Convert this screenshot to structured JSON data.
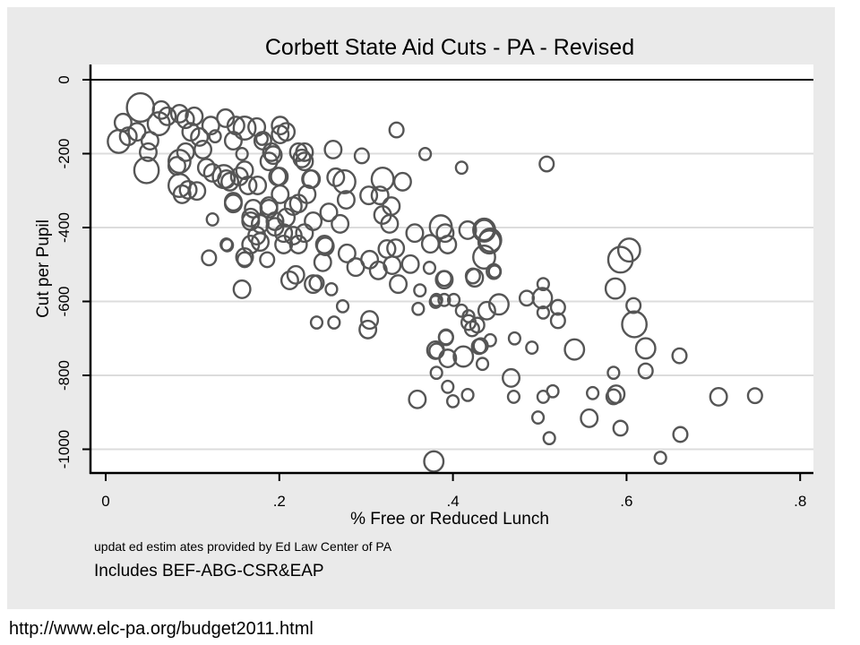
{
  "chart_data": {
    "type": "scatter",
    "title": "Corbett State Aid Cuts - PA - Revised",
    "xlabel": "% Free or Reduced Lunch",
    "ylabel": "Cut per Pupil",
    "xlim": [
      -0.015,
      0.818
    ],
    "ylim": [
      -1060,
      40
    ],
    "xticks": [
      0,
      0.2,
      0.4,
      0.6,
      0.8
    ],
    "xtick_labels": [
      "0",
      ".2",
      ".4",
      ".6",
      ".8"
    ],
    "yticks": [
      0,
      -200,
      -400,
      -600,
      -800,
      -1000
    ],
    "ytick_labels": [
      "0",
      "-200",
      "-400",
      "-600",
      "-800",
      "-1000"
    ],
    "grid": "horizontal",
    "reference_line_y": 0,
    "marker": "hollow circle, size weighted",
    "marker_color": "#555555",
    "notes": [
      "updat ed estim ates provided by Ed Law Center of PA",
      "Includes BEF-ABG-CSR&EAP"
    ],
    "points_columns": [
      "x",
      "y",
      "weight"
    ],
    "points": [
      [
        0.04,
        -75,
        4
      ],
      [
        0.02,
        -116,
        2
      ],
      [
        0.015,
        -167,
        3
      ],
      [
        0.026,
        -153,
        2
      ],
      [
        0.036,
        -141,
        2
      ],
      [
        0.051,
        -165,
        2
      ],
      [
        0.049,
        -196,
        2
      ],
      [
        0.047,
        -245,
        3.5
      ],
      [
        0.064,
        -82,
        2
      ],
      [
        0.071,
        -99,
        2
      ],
      [
        0.061,
        -119,
        3
      ],
      [
        0.085,
        -92,
        2
      ],
      [
        0.092,
        -107,
        2
      ],
      [
        0.102,
        -99,
        2
      ],
      [
        0.098,
        -141,
        2
      ],
      [
        0.108,
        -155,
        2
      ],
      [
        0.121,
        -124,
        2
      ],
      [
        0.112,
        -189,
        2
      ],
      [
        0.126,
        -153,
        1
      ],
      [
        0.138,
        -104,
        2
      ],
      [
        0.15,
        -124,
        2
      ],
      [
        0.16,
        -131,
        3
      ],
      [
        0.174,
        -128,
        2
      ],
      [
        0.18,
        -160,
        1
      ],
      [
        0.201,
        -124,
        2
      ],
      [
        0.208,
        -141,
        2
      ],
      [
        0.085,
        -221,
        3
      ],
      [
        0.082,
        -233,
        2
      ],
      [
        0.092,
        -196,
        2
      ],
      [
        0.085,
        -286,
        3
      ],
      [
        0.095,
        -298,
        2
      ],
      [
        0.105,
        -301,
        2
      ],
      [
        0.088,
        -310,
        2
      ],
      [
        0.116,
        -238,
        2
      ],
      [
        0.123,
        -252,
        2
      ],
      [
        0.136,
        -262,
        3
      ],
      [
        0.143,
        -276,
        2
      ],
      [
        0.154,
        -262,
        2
      ],
      [
        0.16,
        -245,
        2
      ],
      [
        0.164,
        -286,
        2
      ],
      [
        0.175,
        -286,
        2
      ],
      [
        0.157,
        -201,
        1
      ],
      [
        0.188,
        -221,
        2
      ],
      [
        0.191,
        -196,
        2
      ],
      [
        0.2,
        -262,
        2
      ],
      [
        0.222,
        -196,
        2
      ],
      [
        0.229,
        -221,
        2
      ],
      [
        0.237,
        -269,
        2
      ],
      [
        0.232,
        -310,
        2
      ],
      [
        0.147,
        -330,
        2
      ],
      [
        0.17,
        -349,
        2
      ],
      [
        0.188,
        -349,
        2
      ],
      [
        0.201,
        -310,
        2
      ],
      [
        0.222,
        -335,
        2
      ],
      [
        0.123,
        -378,
        1
      ],
      [
        0.139,
        -446,
        1
      ],
      [
        0.119,
        -482,
        1.5
      ],
      [
        0.16,
        -487,
        1.5
      ],
      [
        0.186,
        -487,
        1.5
      ],
      [
        0.167,
        -383,
        2
      ],
      [
        0.174,
        -422,
        2
      ],
      [
        0.195,
        -398,
        2
      ],
      [
        0.208,
        -373,
        2
      ],
      [
        0.216,
        -422,
        2
      ],
      [
        0.205,
        -446,
        2
      ],
      [
        0.222,
        -446,
        2
      ],
      [
        0.239,
        -383,
        2
      ],
      [
        0.262,
        -189,
        2
      ],
      [
        0.295,
        -206,
        1.5
      ],
      [
        0.368,
        -201,
        1
      ],
      [
        0.41,
        -238,
        1
      ],
      [
        0.319,
        -269,
        3
      ],
      [
        0.342,
        -276,
        2
      ],
      [
        0.275,
        -276,
        3
      ],
      [
        0.265,
        -264,
        2
      ],
      [
        0.277,
        -325,
        2
      ],
      [
        0.303,
        -313,
        2
      ],
      [
        0.316,
        -313,
        2
      ],
      [
        0.329,
        -342,
        2
      ],
      [
        0.319,
        -366,
        2
      ],
      [
        0.327,
        -390,
        2
      ],
      [
        0.356,
        -415,
        2
      ],
      [
        0.386,
        -398,
        3
      ],
      [
        0.391,
        -415,
        2
      ],
      [
        0.374,
        -444,
        2
      ],
      [
        0.394,
        -446,
        2
      ],
      [
        0.417,
        -407,
        2
      ],
      [
        0.436,
        -407,
        3
      ],
      [
        0.443,
        -434,
        3
      ],
      [
        0.436,
        -480,
        3
      ],
      [
        0.448,
        -519,
        1
      ],
      [
        0.425,
        -536,
        2
      ],
      [
        0.373,
        -509,
        1
      ],
      [
        0.39,
        -541,
        2
      ],
      [
        0.351,
        -499,
        2
      ],
      [
        0.334,
        -456,
        2
      ],
      [
        0.324,
        -458,
        2
      ],
      [
        0.33,
        -502,
        2
      ],
      [
        0.337,
        -553,
        2
      ],
      [
        0.314,
        -516,
        2
      ],
      [
        0.304,
        -487,
        2
      ],
      [
        0.288,
        -507,
        2
      ],
      [
        0.278,
        -470,
        2
      ],
      [
        0.27,
        -390,
        2
      ],
      [
        0.257,
        -359,
        2
      ],
      [
        0.252,
        -446,
        2
      ],
      [
        0.25,
        -494,
        2
      ],
      [
        0.239,
        -553,
        2
      ],
      [
        0.229,
        -415,
        2
      ],
      [
        0.216,
        -342,
        2
      ],
      [
        0.205,
        -415,
        2
      ],
      [
        0.195,
        -383,
        2
      ],
      [
        0.188,
        -342,
        2
      ],
      [
        0.178,
        -390,
        2
      ],
      [
        0.167,
        -373,
        2
      ],
      [
        0.178,
        -439,
        2
      ],
      [
        0.167,
        -446,
        2
      ],
      [
        0.16,
        -480,
        2
      ],
      [
        0.14,
        -448,
        1
      ],
      [
        0.157,
        -567,
        2
      ],
      [
        0.219,
        -528,
        2
      ],
      [
        0.212,
        -543,
        2
      ],
      [
        0.243,
        -550,
        1.5
      ],
      [
        0.26,
        -567,
        1
      ],
      [
        0.273,
        -613,
        1
      ],
      [
        0.243,
        -657,
        1
      ],
      [
        0.263,
        -657,
        1
      ],
      [
        0.304,
        -650,
        2
      ],
      [
        0.302,
        -676,
        2
      ],
      [
        0.36,
        -620,
        1
      ],
      [
        0.381,
        -596,
        1
      ],
      [
        0.401,
        -596,
        1
      ],
      [
        0.41,
        -625,
        1
      ],
      [
        0.418,
        -657,
        1.5
      ],
      [
        0.428,
        -664,
        1.5
      ],
      [
        0.439,
        -625,
        2
      ],
      [
        0.453,
        -608,
        2.5
      ],
      [
        0.392,
        -698,
        1.5
      ],
      [
        0.381,
        -734,
        1.5
      ],
      [
        0.412,
        -749,
        2.5
      ],
      [
        0.43,
        -722,
        1.5
      ],
      [
        0.443,
        -705,
        1
      ],
      [
        0.229,
        -196,
        2
      ],
      [
        0.226,
        -213,
        2
      ],
      [
        0.236,
        -269,
        2
      ],
      [
        0.193,
        -204,
        2
      ],
      [
        0.198,
        -262,
        2
      ],
      [
        0.147,
        -165,
        2
      ],
      [
        0.181,
        -165,
        2
      ],
      [
        0.201,
        -148,
        2
      ],
      [
        0.139,
        -269,
        2
      ],
      [
        0.147,
        -335,
        2
      ],
      [
        0.362,
        -570,
        1
      ],
      [
        0.39,
        -538,
        1.5
      ],
      [
        0.423,
        -531,
        1.5
      ],
      [
        0.447,
        -519,
        1.5
      ],
      [
        0.253,
        -451,
        2
      ],
      [
        0.508,
        -228,
        1.5
      ],
      [
        0.335,
        -136,
        1.5
      ],
      [
        0.603,
        -461,
        3
      ],
      [
        0.593,
        -487,
        3.5
      ],
      [
        0.587,
        -565,
        2.5
      ],
      [
        0.608,
        -611,
        1.5
      ],
      [
        0.609,
        -662,
        3.5
      ],
      [
        0.622,
        -727,
        2.5
      ],
      [
        0.622,
        -788,
        1.5
      ],
      [
        0.661,
        -747,
        1.5
      ],
      [
        0.706,
        -858,
        2
      ],
      [
        0.748,
        -855,
        1.5
      ],
      [
        0.662,
        -960,
        1.5
      ],
      [
        0.639,
        -1023,
        1
      ],
      [
        0.585,
        -793,
        1
      ],
      [
        0.588,
        -851,
        2
      ],
      [
        0.585,
        -858,
        1.5
      ],
      [
        0.561,
        -848,
        1
      ],
      [
        0.593,
        -943,
        1.5
      ],
      [
        0.557,
        -916,
        2
      ],
      [
        0.54,
        -730,
        2.5
      ],
      [
        0.521,
        -652,
        1.5
      ],
      [
        0.521,
        -616,
        1.5
      ],
      [
        0.504,
        -630,
        1
      ],
      [
        0.503,
        -591,
        2.5
      ],
      [
        0.504,
        -553,
        1
      ],
      [
        0.485,
        -591,
        1.5
      ],
      [
        0.491,
        -725,
        1
      ],
      [
        0.471,
        -700,
        1
      ],
      [
        0.467,
        -807,
        2
      ],
      [
        0.47,
        -858,
        1
      ],
      [
        0.504,
        -858,
        1
      ],
      [
        0.515,
        -843,
        1
      ],
      [
        0.498,
        -914,
        1
      ],
      [
        0.511,
        -970,
        1
      ],
      [
        0.378,
        -1033,
        2.5
      ],
      [
        0.359,
        -865,
        2
      ],
      [
        0.394,
        -831,
        1
      ],
      [
        0.4,
        -870,
        1
      ],
      [
        0.417,
        -853,
        1
      ],
      [
        0.381,
        -793,
        1
      ],
      [
        0.38,
        -732,
        2
      ],
      [
        0.394,
        -754,
        2
      ],
      [
        0.392,
        -696,
        1.5
      ],
      [
        0.434,
        -769,
        1
      ],
      [
        0.432,
        -720,
        1.5
      ],
      [
        0.422,
        -674,
        1.5
      ],
      [
        0.418,
        -640,
        1
      ],
      [
        0.39,
        -596,
        1
      ],
      [
        0.38,
        -601,
        1
      ],
      [
        0.442,
        -439,
        3
      ],
      [
        0.436,
        -407,
        2.5
      ]
    ]
  },
  "footer": {
    "url": "http://www.elc-pa.org/budget2011.html"
  }
}
